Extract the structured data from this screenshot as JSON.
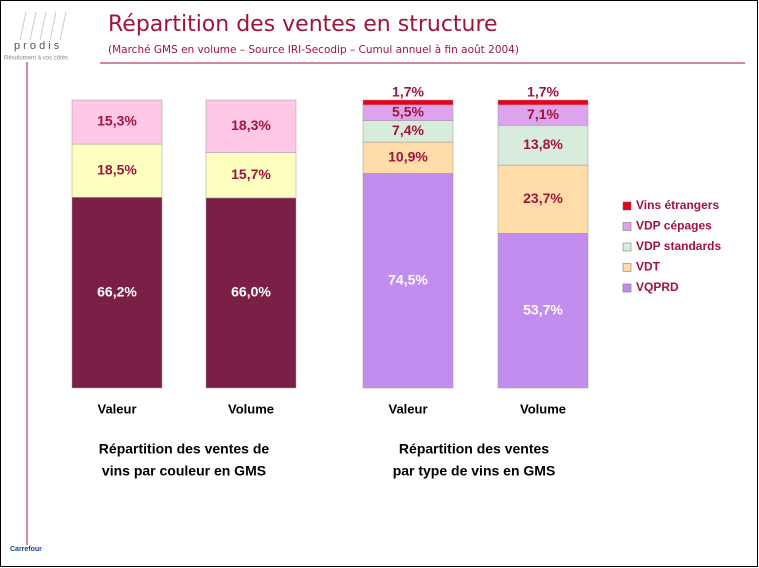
{
  "header": {
    "title": "Répartition des ventes en structure",
    "subtitle": "(Marché GMS en volume – Source IRI-Secodip – Cumul annuel à fin août 2004)",
    "logo": "p r o d i s",
    "tagline": "Résolument à vos côtés",
    "footer": "Carrefour"
  },
  "chart_data": [
    {
      "type": "stacked-bar",
      "title": [
        "Répartition des ventes de",
        "vins par couleur en GMS"
      ],
      "categories": [
        "Valeur",
        "Volume"
      ],
      "ylim": [
        0,
        100
      ],
      "series": [
        {
          "color": "#7a1f45",
          "values": [
            66.2,
            66.0
          ],
          "value_labels": [
            "66,2%",
            "66,0%"
          ]
        },
        {
          "color": "#ffffc0",
          "values": [
            18.5,
            15.7
          ],
          "value_labels": [
            "18,5%",
            "15,7%"
          ]
        },
        {
          "color": "#ffc8e6",
          "values": [
            15.3,
            18.3
          ],
          "value_labels": [
            "15,3%",
            "18,3%"
          ]
        }
      ]
    },
    {
      "type": "stacked-bar",
      "title": [
        "Répartition des ventes",
        "par type de vins en GMS"
      ],
      "categories": [
        "Valeur",
        "Volume"
      ],
      "ylim": [
        0,
        100
      ],
      "legend": "right",
      "series": [
        {
          "name": "VQPRD",
          "color": "#c38df0",
          "values": [
            74.5,
            53.7
          ],
          "value_labels": [
            "74,5%",
            "53,7%"
          ]
        },
        {
          "name": "VDT",
          "color": "#ffdca8",
          "values": [
            10.9,
            23.7
          ],
          "value_labels": [
            "10,9%",
            "23,7%"
          ]
        },
        {
          "name": "VDP standards",
          "color": "#d8ecdc",
          "values": [
            7.4,
            13.8
          ],
          "value_labels": [
            "7,4%",
            "13,8%"
          ]
        },
        {
          "name": "VDP cépages",
          "color": "#dca4ec",
          "values": [
            5.5,
            7.1
          ],
          "value_labels": [
            "5,5%",
            "7,1%"
          ]
        },
        {
          "name": "Vins étrangers",
          "color": "#e8001c",
          "values": [
            1.7,
            1.7
          ],
          "value_labels": [
            "1,7%",
            "1,7%"
          ]
        }
      ]
    }
  ]
}
